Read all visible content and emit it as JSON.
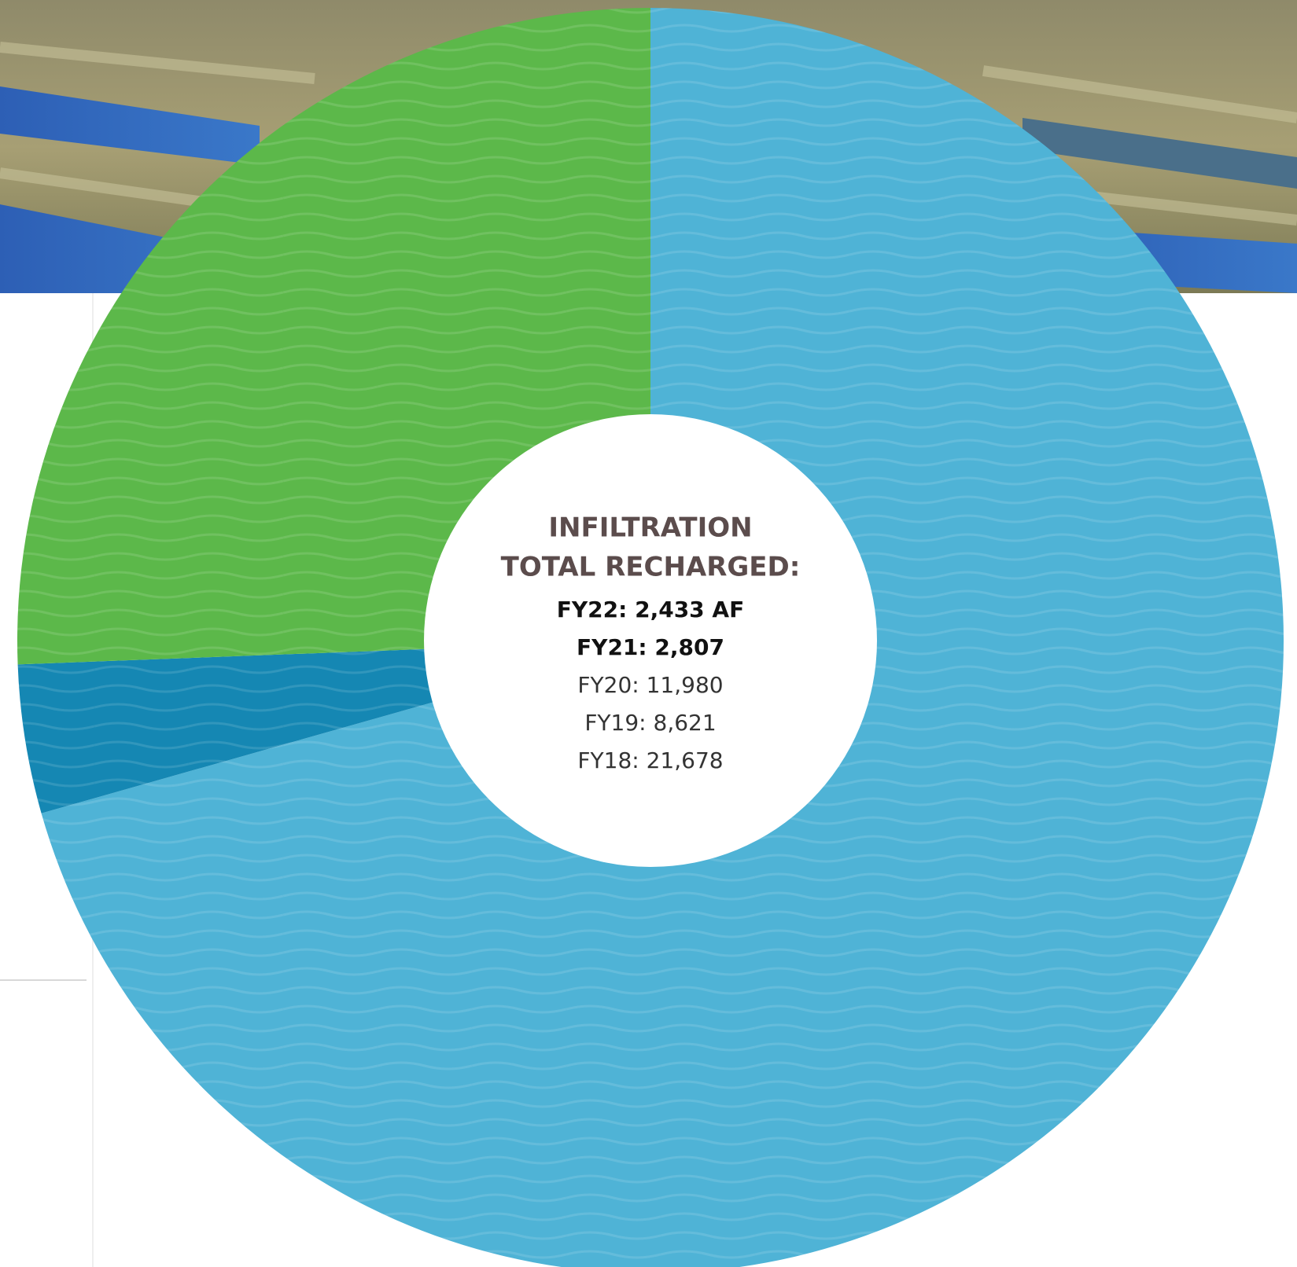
{
  "chart_data": {
    "type": "donut",
    "values": [
      70.6,
      3.8,
      25.6
    ],
    "colors": [
      "#4fb3d6",
      "#1587b3",
      "#5cb84a"
    ],
    "start_angle": 0,
    "direction": "clockwise",
    "center_title": [
      "INFILTRATION",
      "TOTAL RECHARGED:"
    ],
    "center_lines": [
      {
        "text": "FY22: 2,433 AF",
        "bold": true
      },
      {
        "text": "FY21: 2,807",
        "bold": true
      },
      {
        "text": "FY20: 11,980",
        "bold": false
      },
      {
        "text": "FY19: 8,621",
        "bold": false
      },
      {
        "text": "FY18: 21,678",
        "bold": false
      }
    ]
  }
}
